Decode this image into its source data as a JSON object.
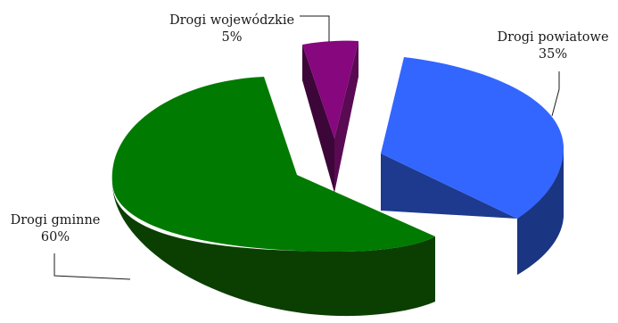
{
  "chart_data": {
    "type": "pie",
    "categories": [
      "Drogi gminne",
      "Drogi wojewódzkie",
      "Drogi powiatowe"
    ],
    "values": [
      60,
      5,
      35
    ],
    "value_labels": [
      "60%",
      "5%",
      "35%"
    ],
    "colors": {
      "Drogi gminne": {
        "top": "#007a00",
        "side": "#0b3f02"
      },
      "Drogi wojewódzkie": {
        "top": "#86077e",
        "side": "#3d0638"
      },
      "Drogi powiatowe": {
        "top": "#3366ff",
        "side": "#1d3a8e"
      }
    },
    "exploded": true,
    "three_d": true,
    "legend": "none"
  }
}
